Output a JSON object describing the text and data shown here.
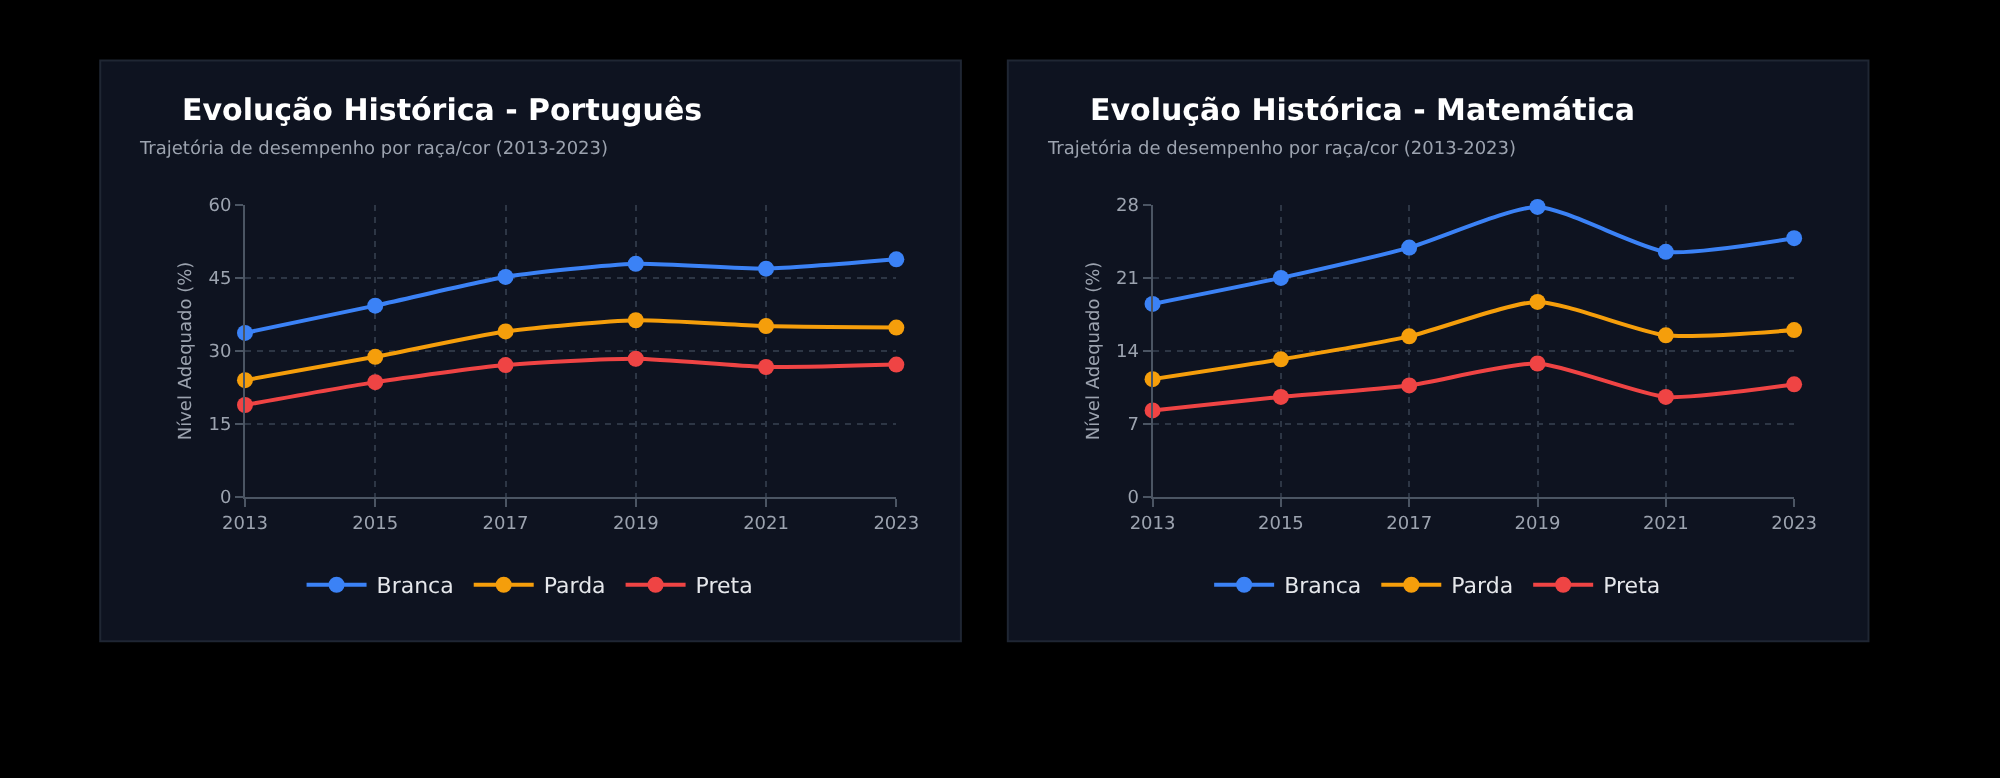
{
  "chart_data": [
    {
      "type": "line",
      "title": "Evolução Histórica - Português",
      "subtitle": "Trajetória de desempenho por raça/cor (2013-2023)",
      "ylabel": "Nível Adequado (%)",
      "x": [
        2013,
        2015,
        2017,
        2019,
        2021,
        2023
      ],
      "xlim": [
        2013,
        2023
      ],
      "xticks": [
        2013,
        2015,
        2017,
        2019,
        2021,
        2023
      ],
      "ylim": [
        0,
        60
      ],
      "yticks": [
        0,
        15,
        30,
        45,
        60
      ],
      "grid": true,
      "legend": "bottom",
      "marker": "circle",
      "line_style": "solid",
      "series": [
        {
          "name": "Branca",
          "color": "#3b82f6",
          "values": [
            33.7,
            39.3,
            45.2,
            47.9,
            46.9,
            48.8
          ]
        },
        {
          "name": "Parda",
          "color": "#f59e0b",
          "values": [
            24.0,
            28.8,
            34.0,
            36.3,
            35.1,
            34.8
          ]
        },
        {
          "name": "Preta",
          "color": "#ef4444",
          "values": [
            18.9,
            23.6,
            27.1,
            28.4,
            26.7,
            27.2
          ]
        }
      ]
    },
    {
      "type": "line",
      "title": "Evolução Histórica - Matemática",
      "subtitle": "Trajetória de desempenho por raça/cor (2013-2023)",
      "ylabel": "Nível Adequado (%)",
      "x": [
        2013,
        2015,
        2017,
        2019,
        2021,
        2023
      ],
      "xlim": [
        2013,
        2023
      ],
      "xticks": [
        2013,
        2015,
        2017,
        2019,
        2021,
        2023
      ],
      "ylim": [
        0,
        28
      ],
      "yticks": [
        0,
        7,
        14,
        21,
        28
      ],
      "grid": true,
      "legend": "bottom",
      "marker": "circle",
      "line_style": "solid",
      "series": [
        {
          "name": "Branca",
          "color": "#3b82f6",
          "values": [
            18.5,
            21.0,
            23.9,
            27.8,
            23.5,
            24.8
          ]
        },
        {
          "name": "Parda",
          "color": "#f59e0b",
          "values": [
            11.3,
            13.2,
            15.4,
            18.7,
            15.5,
            16.0
          ]
        },
        {
          "name": "Preta",
          "color": "#ef4444",
          "values": [
            8.3,
            9.6,
            10.7,
            12.8,
            9.6,
            10.8
          ]
        }
      ]
    }
  ]
}
